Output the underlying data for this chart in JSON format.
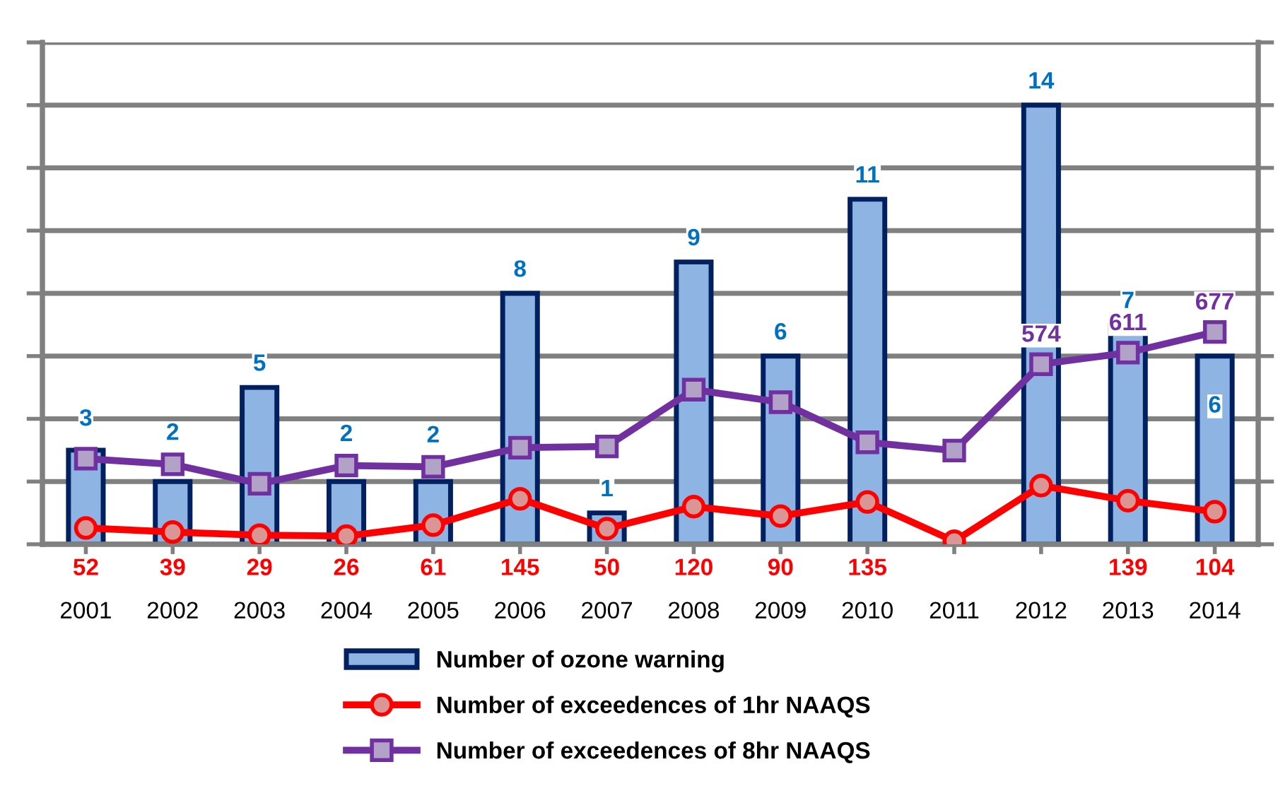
{
  "chart_data": {
    "type": "bar",
    "categories": [
      "2001",
      "2002",
      "2003",
      "2004",
      "2005",
      "2006",
      "2007",
      "2008",
      "2009",
      "2010",
      "2011",
      "2012",
      "2013",
      "2014"
    ],
    "series": [
      {
        "name": "Number of ozone warning",
        "color": "#8eb4e3",
        "values": [
          3,
          2,
          5,
          2,
          2,
          8,
          1,
          9,
          6,
          11,
          null,
          14,
          7,
          6
        ],
        "value_labels": [
          "3",
          "2",
          "5",
          "2",
          "2",
          "8",
          "1",
          "9",
          "6",
          "11",
          null,
          "14",
          "7",
          "6"
        ]
      },
      {
        "name": "Number of exceedences of 1hr NAAQS",
        "type": "line",
        "axis": "y2",
        "color": "#ff0000",
        "marker": "circle",
        "values": [
          52,
          39,
          29,
          26,
          61,
          145,
          50,
          120,
          90,
          135,
          10,
          187,
          139,
          104
        ],
        "value_labels": [
          "52",
          "39",
          "29",
          "26",
          "61",
          "145",
          "50",
          "120",
          "90",
          "135",
          null,
          null,
          "139",
          "104"
        ]
      },
      {
        "name": "Number of exceedences of 8hr NAAQS",
        "type": "line",
        "axis": "y2",
        "color": "#7030a0",
        "marker": "square",
        "values": [
          273,
          255,
          193,
          251,
          247,
          308,
          312,
          493,
          453,
          325,
          299,
          574,
          611,
          677
        ],
        "value_labels": [
          null,
          null,
          null,
          null,
          null,
          null,
          null,
          null,
          null,
          null,
          null,
          "574",
          "611",
          "677"
        ]
      }
    ],
    "ylim": [
      0,
      16
    ],
    "yticks": [
      {
        "value": 0,
        "label": null
      },
      {
        "value": 2,
        "label": null
      },
      {
        "value": 4,
        "label": null
      },
      {
        "value": 6,
        "label": null
      },
      {
        "value": 8,
        "label": null
      },
      {
        "value": 10,
        "label": null
      },
      {
        "value": 12,
        "label": null
      },
      {
        "value": 14,
        "label": null
      },
      {
        "value": 16,
        "label": null
      }
    ],
    "y2lim": [
      0,
      1600
    ],
    "y2ticks": [
      {
        "value": 0,
        "label": null
      },
      {
        "value": 200,
        "label": null
      },
      {
        "value": 400,
        "label": null
      },
      {
        "value": 600,
        "label": null
      },
      {
        "value": 800,
        "label": null
      },
      {
        "value": 1000,
        "label": null
      },
      {
        "value": 1200,
        "label": null
      },
      {
        "value": 1400,
        "label": null
      },
      {
        "value": 1600,
        "label": null
      }
    ],
    "tick_labels": "x",
    "grid": "y",
    "legend": "bottom"
  }
}
